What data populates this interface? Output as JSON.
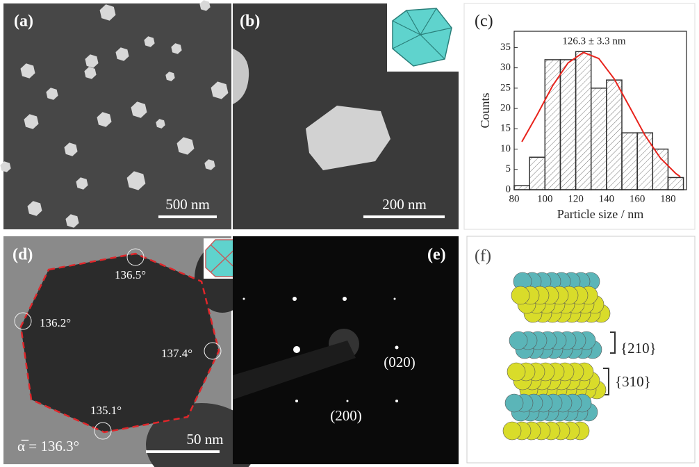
{
  "chart_data": {
    "type": "histogram",
    "label": "(c)",
    "annotation": "126.3 ± 3.3 nm",
    "xlabel": "Particle size / nm",
    "ylabel": "Counts",
    "bins": [
      80,
      90,
      100,
      110,
      120,
      130,
      140,
      150,
      160,
      170,
      180,
      190
    ],
    "values": [
      1,
      8,
      32,
      32,
      34,
      25,
      27,
      14,
      14,
      10,
      3
    ],
    "xlim": [
      80,
      192
    ],
    "ylim": [
      0,
      39
    ],
    "xticks": [
      80,
      100,
      120,
      140,
      160,
      180
    ],
    "yticks": [
      0,
      5,
      10,
      15,
      20,
      25,
      30,
      35
    ],
    "hatch": true,
    "color": "#333333",
    "fit": {
      "color": "#e8231c",
      "x": [
        85,
        95,
        105,
        115,
        125,
        135,
        145,
        155,
        165,
        175,
        185,
        188
      ],
      "values": [
        11.8,
        18.5,
        25.6,
        31.2,
        33.8,
        32.3,
        27.3,
        20.4,
        13.4,
        7.8,
        4.0,
        3.2
      ]
    }
  },
  "panels": {
    "a": {
      "label": "(a)",
      "scale_bar": "500 nm"
    },
    "b": {
      "label": "(b)",
      "scale_bar": "200 nm"
    },
    "d": {
      "label": "(d)",
      "angles": [
        "136.5°",
        "136.2°",
        "137.4°",
        "135.1°"
      ],
      "scale_bar": "50 nm",
      "mean_angle": "α̅ = 136.3°"
    },
    "e": {
      "label": "(e)",
      "spots": [
        "(020)",
        "(200)"
      ]
    },
    "f": {
      "label": "(f)",
      "facets": [
        "{210}",
        "{310}"
      ]
    }
  }
}
